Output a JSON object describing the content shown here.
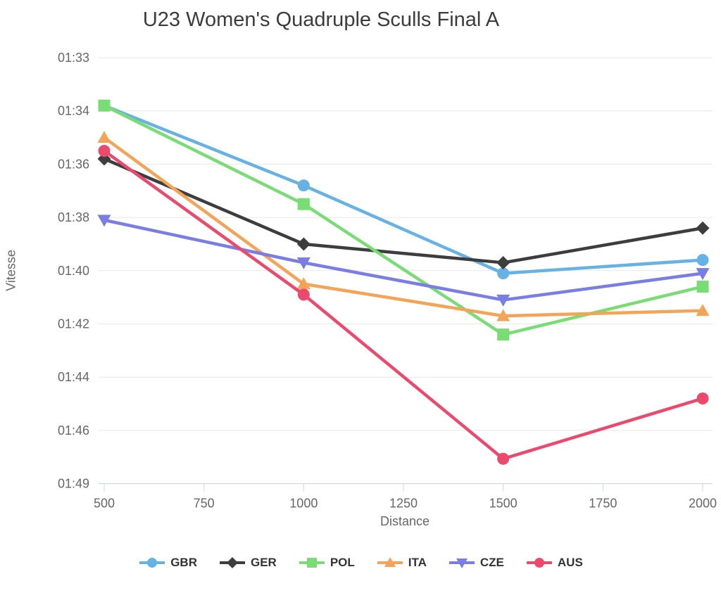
{
  "chart_data": {
    "type": "line",
    "title": "U23 Women's Quadruple Sculls Final A",
    "xlabel": "Distance",
    "ylabel": "Vitesse",
    "legend_position": "bottom",
    "grid": "horizontal-only",
    "x_ticks": [
      500,
      750,
      1000,
      1250,
      1500,
      1750,
      2000
    ],
    "x_range": [
      500,
      2000
    ],
    "y_tick_labels": [
      "01:33",
      "01:34",
      "01:36",
      "01:38",
      "01:40",
      "01:42",
      "01:44",
      "01:46",
      "01:49"
    ],
    "y_tick_seconds": [
      93,
      94,
      96,
      98,
      100,
      102,
      104,
      106,
      109
    ],
    "y_axis_note": "split time per 500m (mm:ss), faster (lower time) at top, ticks evenly spaced",
    "x": [
      500,
      1000,
      1500,
      2000
    ],
    "series": [
      {
        "name": "GBR",
        "color": "#67b2e4",
        "marker": "circle",
        "values_seconds": [
          93.9,
          96.8,
          100.1,
          99.6
        ],
        "values_label": [
          "01:33.9",
          "01:36.8",
          "01:40.1",
          "01:39.6"
        ]
      },
      {
        "name": "GER",
        "color": "#3d3d3d",
        "marker": "diamond",
        "values_seconds": [
          95.8,
          99.0,
          99.7,
          98.4
        ],
        "values_label": [
          "01:35.8",
          "01:39.0",
          "01:39.7",
          "01:38.4"
        ]
      },
      {
        "name": "POL",
        "color": "#7adc74",
        "marker": "square",
        "values_seconds": [
          93.9,
          97.5,
          102.4,
          100.6
        ],
        "values_label": [
          "01:33.9",
          "01:37.5",
          "01:42.4",
          "01:40.6"
        ]
      },
      {
        "name": "ITA",
        "color": "#f3a456",
        "marker": "triangle-up",
        "values_seconds": [
          95.0,
          100.5,
          101.7,
          101.5
        ],
        "values_label": [
          "01:35.0",
          "01:40.5",
          "01:41.7",
          "01:41.5"
        ]
      },
      {
        "name": "CZE",
        "color": "#7a7de4",
        "marker": "triangle-down",
        "values_seconds": [
          98.1,
          99.7,
          101.1,
          100.1
        ],
        "values_label": [
          "01:38.1",
          "01:39.7",
          "01:41.1",
          "01:40.1"
        ]
      },
      {
        "name": "AUS",
        "color": "#ec4a6d",
        "marker": "circle",
        "values_seconds": [
          95.5,
          100.9,
          107.6,
          104.8
        ],
        "values_label": [
          "01:35.5",
          "01:40.9",
          "01:47.6",
          "01:44.8"
        ]
      }
    ],
    "colors": {
      "title_text": "#3c3c3c",
      "axis_text": "#666666",
      "legend_text": "#333333",
      "gridline": "#e7e7e7",
      "axis_line": "#ccd6eb",
      "background": "#ffffff"
    }
  }
}
